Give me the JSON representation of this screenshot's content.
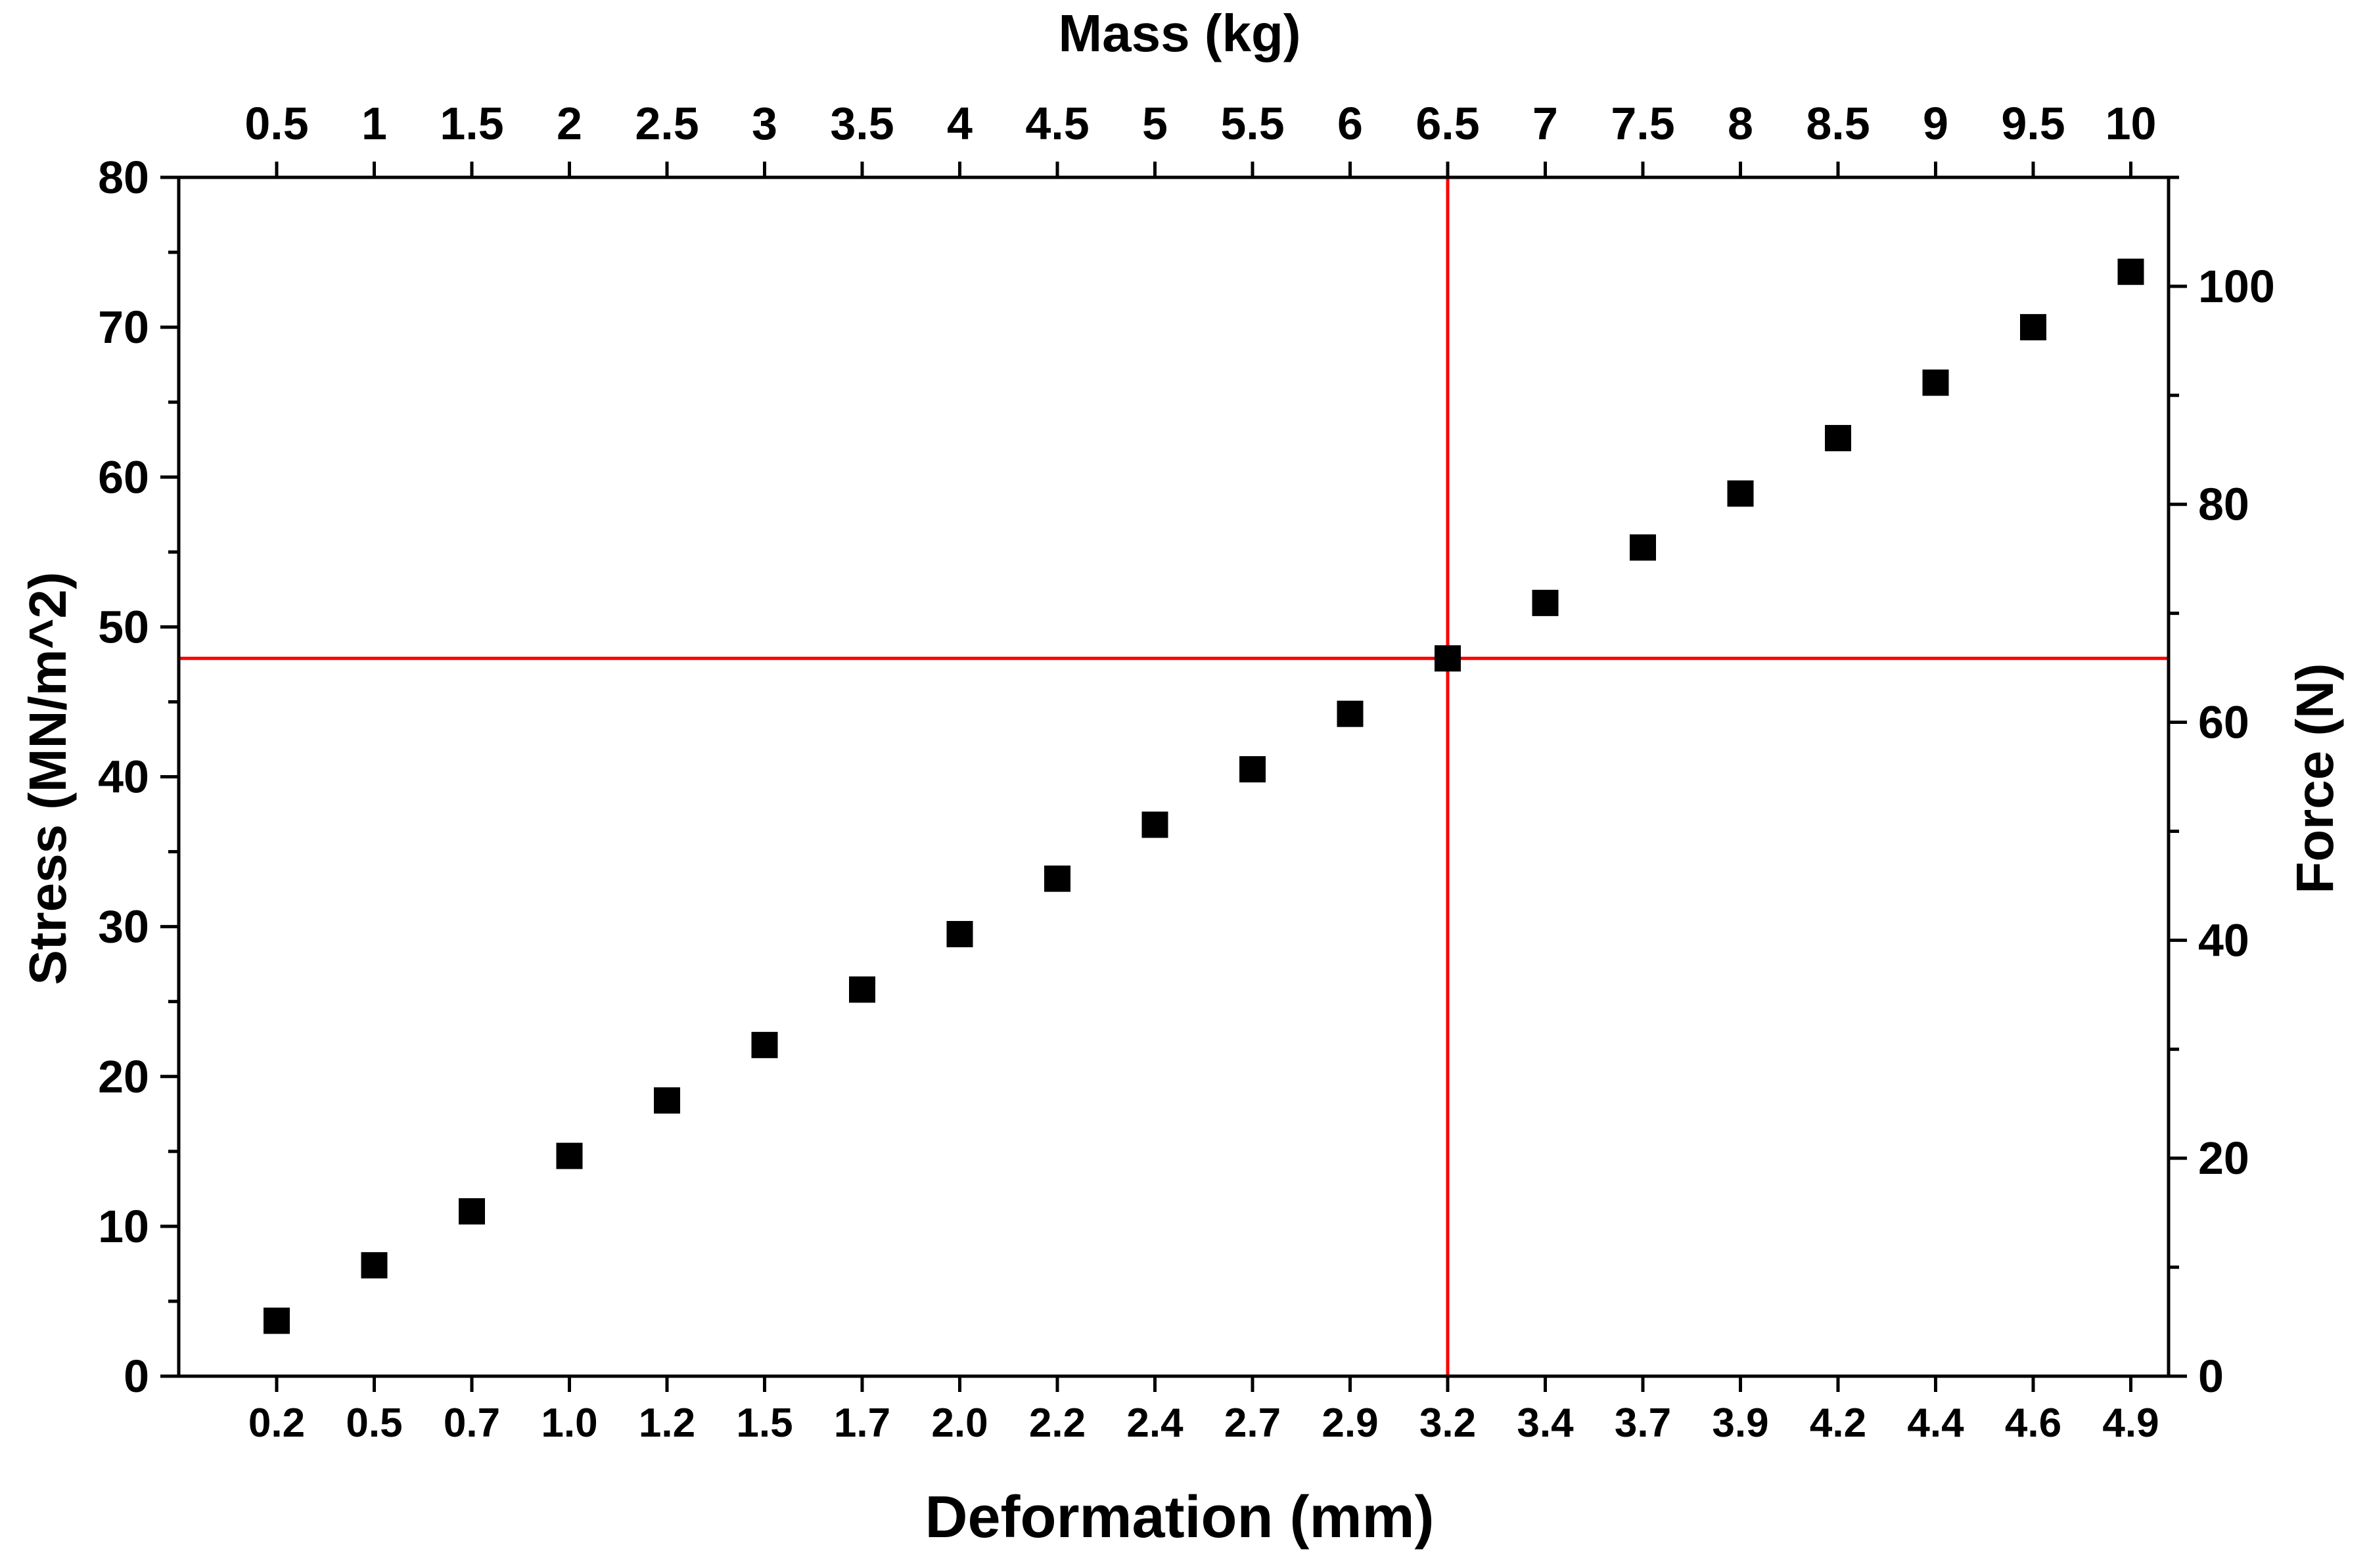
{
  "chart_data": {
    "type": "scatter",
    "title": "",
    "categories": [
      "0.2",
      "0.5",
      "0.7",
      "1.0",
      "1.2",
      "1.5",
      "1.7",
      "2.0",
      "2.2",
      "2.4",
      "2.7",
      "2.9",
      "3.2",
      "3.4",
      "3.7",
      "3.9",
      "4.2",
      "4.4",
      "4.6",
      "4.9"
    ],
    "top_axis": {
      "label": "Mass (kg)",
      "ticks": [
        "0.5",
        "1",
        "1.5",
        "2",
        "2.5",
        "3",
        "3.5",
        "4",
        "4.5",
        "5",
        "5.5",
        "6",
        "6.5",
        "7",
        "7.5",
        "8",
        "8.5",
        "9",
        "9.5",
        "10"
      ]
    },
    "xlabel": "Deformation (mm)",
    "ylabel": "Stress (MN/m^2)",
    "ylim": [
      0,
      80
    ],
    "yticks": [
      "0",
      "10",
      "20",
      "30",
      "40",
      "50",
      "60",
      "70",
      "80"
    ],
    "right_axis": {
      "label": "Force (N)",
      "ylim": [
        0,
        110
      ],
      "ticks": [
        "0",
        "20",
        "40",
        "60",
        "80",
        "100"
      ]
    },
    "series": [
      {
        "values": [
          3.7,
          7.4,
          11.0,
          14.7,
          18.4,
          22.1,
          25.8,
          29.5,
          33.2,
          36.8,
          40.5,
          44.2,
          47.9,
          51.6,
          55.3,
          58.9,
          62.6,
          66.3,
          70.0,
          73.7
        ],
        "marker": "square",
        "color": "#000000"
      }
    ],
    "reference_lines": [
      {
        "orientation": "horizontal",
        "value": 47.9,
        "color": "#ff0000"
      },
      {
        "orientation": "vertical",
        "category": "3.2",
        "color": "#ff0000"
      }
    ],
    "grid": false,
    "legend": "none"
  }
}
